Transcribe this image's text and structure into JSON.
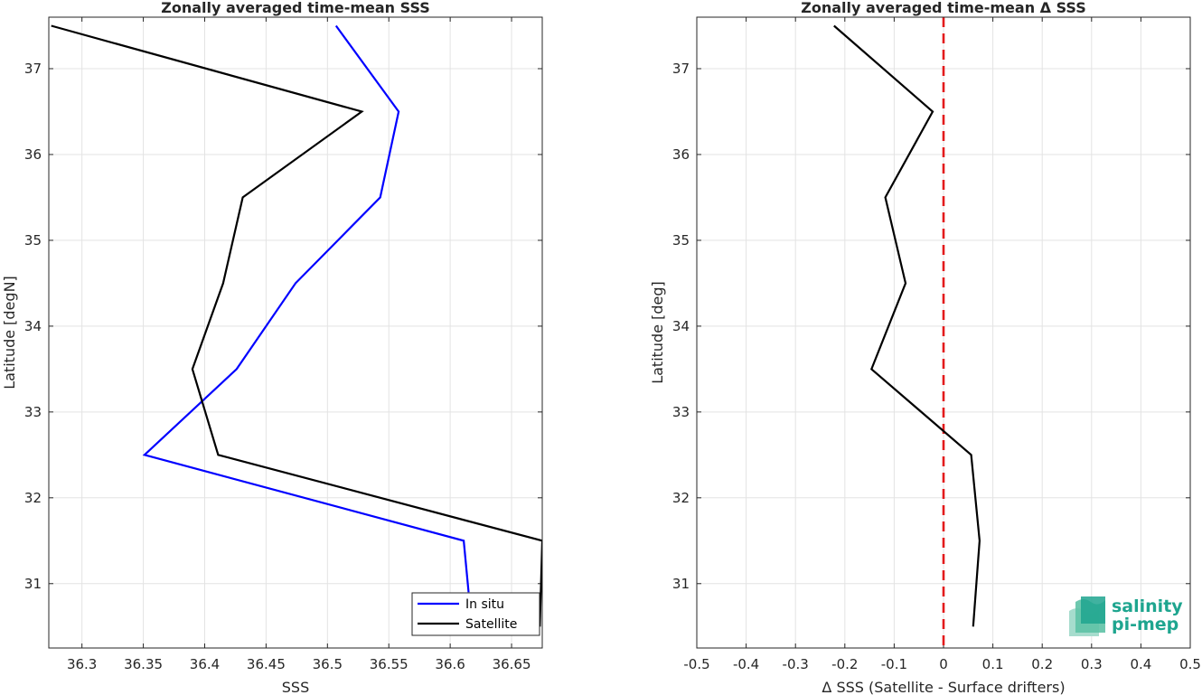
{
  "chart_data": [
    {
      "type": "line",
      "title": "Zonally averaged time-mean SSS",
      "xlabel": "SSS",
      "ylabel": "Latitude [degN]",
      "xlim": [
        36.273,
        36.675
      ],
      "ylim": [
        30.25,
        37.6
      ],
      "x_ticks": [
        "36.3",
        "36.35",
        "36.4",
        "36.45",
        "36.5",
        "36.55",
        "36.6",
        "36.65"
      ],
      "y_ticks": [
        "31",
        "32",
        "33",
        "34",
        "35",
        "36",
        "37"
      ],
      "grid": true,
      "legend_position": "bottom-right",
      "series": [
        {
          "name": "In situ",
          "color": "#0000ff",
          "points": [
            [
              36.507,
              37.5
            ],
            [
              36.558,
              36.5
            ],
            [
              36.543,
              35.5
            ],
            [
              36.474,
              34.5
            ],
            [
              36.426,
              33.5
            ],
            [
              36.351,
              32.5
            ],
            [
              36.611,
              31.5
            ],
            [
              36.615,
              30.9
            ]
          ]
        },
        {
          "name": "Satellite",
          "color": "#000000",
          "points": [
            [
              36.275,
              37.5
            ],
            [
              36.528,
              36.5
            ],
            [
              36.431,
              35.5
            ],
            [
              36.415,
              34.5
            ],
            [
              36.39,
              33.5
            ],
            [
              36.411,
              32.5
            ],
            [
              36.675,
              31.5
            ],
            [
              36.673,
              30.5
            ]
          ]
        }
      ]
    },
    {
      "type": "line",
      "title": "Zonally averaged time-mean Δ SSS",
      "xlabel": "Δ SSS (Satellite - Surface drifters)",
      "ylabel": "Latitude [deg]",
      "xlim": [
        -0.5,
        0.5
      ],
      "ylim": [
        30.25,
        37.6
      ],
      "x_ticks": [
        "-0.5",
        "-0.4",
        "-0.3",
        "-0.2",
        "-0.1",
        "0",
        "0.1",
        "0.2",
        "0.3",
        "0.4",
        "0.5"
      ],
      "y_ticks": [
        "31",
        "32",
        "33",
        "34",
        "35",
        "36",
        "37"
      ],
      "grid": true,
      "reference_line": {
        "x": 0,
        "color": "#e31a1c",
        "style": "dashed"
      },
      "series": [
        {
          "color": "#000000",
          "points": [
            [
              -0.222,
              37.5
            ],
            [
              -0.022,
              36.5
            ],
            [
              -0.118,
              35.5
            ],
            [
              -0.077,
              34.5
            ],
            [
              -0.146,
              33.5
            ],
            [
              0.056,
              32.5
            ],
            [
              0.073,
              31.5
            ],
            [
              0.06,
              30.5
            ]
          ]
        }
      ]
    }
  ],
  "logo": {
    "line1": "salinity",
    "line2": "pi-mep",
    "color": "#1ea58f"
  }
}
